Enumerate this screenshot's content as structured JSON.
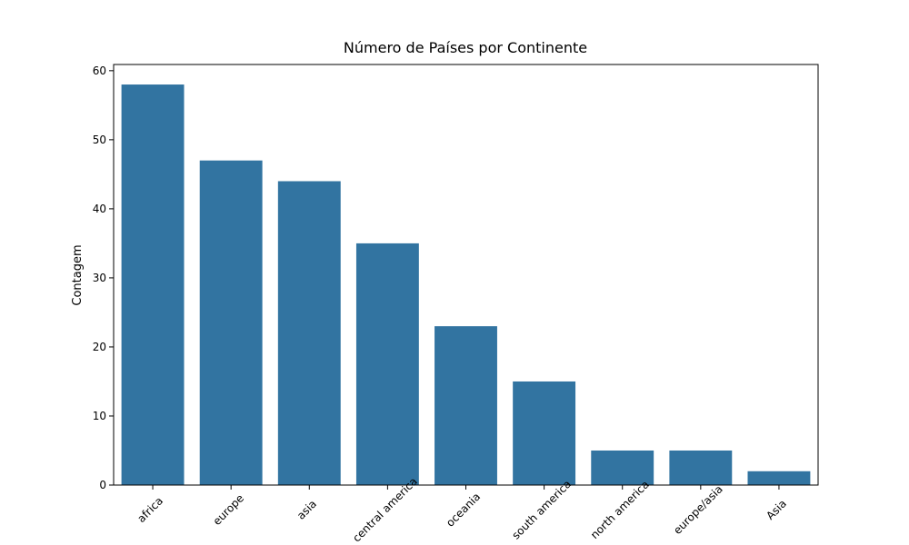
{
  "chart_data": {
    "type": "bar",
    "title": "Número de Países por Continente",
    "y_label": "Contagem",
    "categories": [
      "africa",
      "europe",
      "asia",
      "central america",
      "oceania",
      "south america",
      "north america",
      "europe/asia",
      "Asia"
    ],
    "values": [
      58,
      47,
      44,
      35,
      23,
      15,
      5,
      5,
      2
    ],
    "color": "#3274a1",
    "ylim": [
      0,
      60.9
    ],
    "yticks": [
      0,
      10,
      20,
      30,
      40,
      50,
      60
    ],
    "grid": false
  }
}
